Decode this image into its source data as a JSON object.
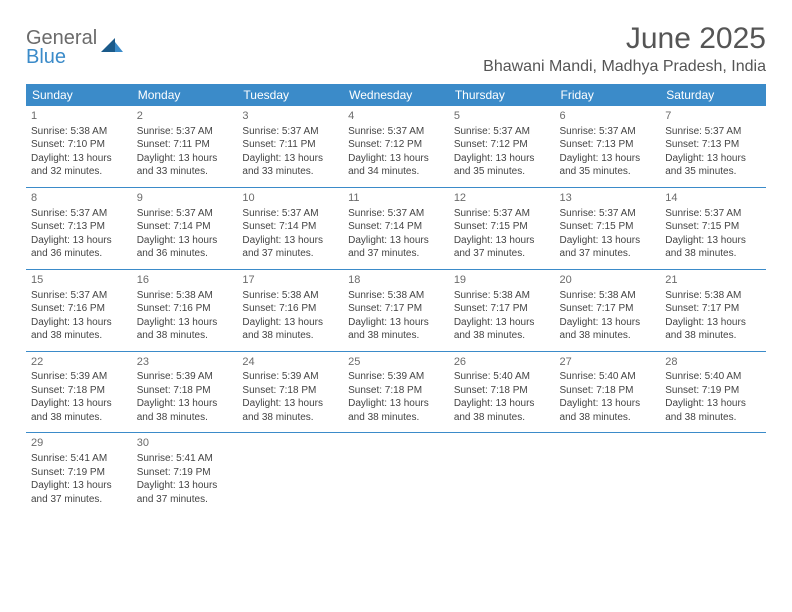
{
  "logo": {
    "line1": "General",
    "line2": "Blue"
  },
  "title": "June 2025",
  "location": "Bhawani Mandi, Madhya Pradesh, India",
  "colors": {
    "header_bg": "#3b8bc9",
    "header_text": "#ffffff",
    "border": "#3b8bc9",
    "body_text": "#444444",
    "title_text": "#555555",
    "logo_gray": "#6b6b6b",
    "logo_blue": "#3b8bc9",
    "background": "#ffffff"
  },
  "font": {
    "title_size": 30,
    "location_size": 16,
    "dayhead_size": 12,
    "cell_size": 10
  },
  "weekdays": [
    "Sunday",
    "Monday",
    "Tuesday",
    "Wednesday",
    "Thursday",
    "Friday",
    "Saturday"
  ],
  "days": [
    {
      "n": 1,
      "sr": "5:38 AM",
      "ss": "7:10 PM",
      "dlh": 13,
      "dlm": 32
    },
    {
      "n": 2,
      "sr": "5:37 AM",
      "ss": "7:11 PM",
      "dlh": 13,
      "dlm": 33
    },
    {
      "n": 3,
      "sr": "5:37 AM",
      "ss": "7:11 PM",
      "dlh": 13,
      "dlm": 33
    },
    {
      "n": 4,
      "sr": "5:37 AM",
      "ss": "7:12 PM",
      "dlh": 13,
      "dlm": 34
    },
    {
      "n": 5,
      "sr": "5:37 AM",
      "ss": "7:12 PM",
      "dlh": 13,
      "dlm": 35
    },
    {
      "n": 6,
      "sr": "5:37 AM",
      "ss": "7:13 PM",
      "dlh": 13,
      "dlm": 35
    },
    {
      "n": 7,
      "sr": "5:37 AM",
      "ss": "7:13 PM",
      "dlh": 13,
      "dlm": 35
    },
    {
      "n": 8,
      "sr": "5:37 AM",
      "ss": "7:13 PM",
      "dlh": 13,
      "dlm": 36
    },
    {
      "n": 9,
      "sr": "5:37 AM",
      "ss": "7:14 PM",
      "dlh": 13,
      "dlm": 36
    },
    {
      "n": 10,
      "sr": "5:37 AM",
      "ss": "7:14 PM",
      "dlh": 13,
      "dlm": 37
    },
    {
      "n": 11,
      "sr": "5:37 AM",
      "ss": "7:14 PM",
      "dlh": 13,
      "dlm": 37
    },
    {
      "n": 12,
      "sr": "5:37 AM",
      "ss": "7:15 PM",
      "dlh": 13,
      "dlm": 37
    },
    {
      "n": 13,
      "sr": "5:37 AM",
      "ss": "7:15 PM",
      "dlh": 13,
      "dlm": 37
    },
    {
      "n": 14,
      "sr": "5:37 AM",
      "ss": "7:15 PM",
      "dlh": 13,
      "dlm": 38
    },
    {
      "n": 15,
      "sr": "5:37 AM",
      "ss": "7:16 PM",
      "dlh": 13,
      "dlm": 38
    },
    {
      "n": 16,
      "sr": "5:38 AM",
      "ss": "7:16 PM",
      "dlh": 13,
      "dlm": 38
    },
    {
      "n": 17,
      "sr": "5:38 AM",
      "ss": "7:16 PM",
      "dlh": 13,
      "dlm": 38
    },
    {
      "n": 18,
      "sr": "5:38 AM",
      "ss": "7:17 PM",
      "dlh": 13,
      "dlm": 38
    },
    {
      "n": 19,
      "sr": "5:38 AM",
      "ss": "7:17 PM",
      "dlh": 13,
      "dlm": 38
    },
    {
      "n": 20,
      "sr": "5:38 AM",
      "ss": "7:17 PM",
      "dlh": 13,
      "dlm": 38
    },
    {
      "n": 21,
      "sr": "5:38 AM",
      "ss": "7:17 PM",
      "dlh": 13,
      "dlm": 38
    },
    {
      "n": 22,
      "sr": "5:39 AM",
      "ss": "7:18 PM",
      "dlh": 13,
      "dlm": 38
    },
    {
      "n": 23,
      "sr": "5:39 AM",
      "ss": "7:18 PM",
      "dlh": 13,
      "dlm": 38
    },
    {
      "n": 24,
      "sr": "5:39 AM",
      "ss": "7:18 PM",
      "dlh": 13,
      "dlm": 38
    },
    {
      "n": 25,
      "sr": "5:39 AM",
      "ss": "7:18 PM",
      "dlh": 13,
      "dlm": 38
    },
    {
      "n": 26,
      "sr": "5:40 AM",
      "ss": "7:18 PM",
      "dlh": 13,
      "dlm": 38
    },
    {
      "n": 27,
      "sr": "5:40 AM",
      "ss": "7:18 PM",
      "dlh": 13,
      "dlm": 38
    },
    {
      "n": 28,
      "sr": "5:40 AM",
      "ss": "7:19 PM",
      "dlh": 13,
      "dlm": 38
    },
    {
      "n": 29,
      "sr": "5:41 AM",
      "ss": "7:19 PM",
      "dlh": 13,
      "dlm": 37
    },
    {
      "n": 30,
      "sr": "5:41 AM",
      "ss": "7:19 PM",
      "dlh": 13,
      "dlm": 37
    }
  ],
  "labels": {
    "sunrise": "Sunrise:",
    "sunset": "Sunset:",
    "daylight": "Daylight:",
    "hours": "hours",
    "and": "and",
    "minutes": "minutes."
  }
}
